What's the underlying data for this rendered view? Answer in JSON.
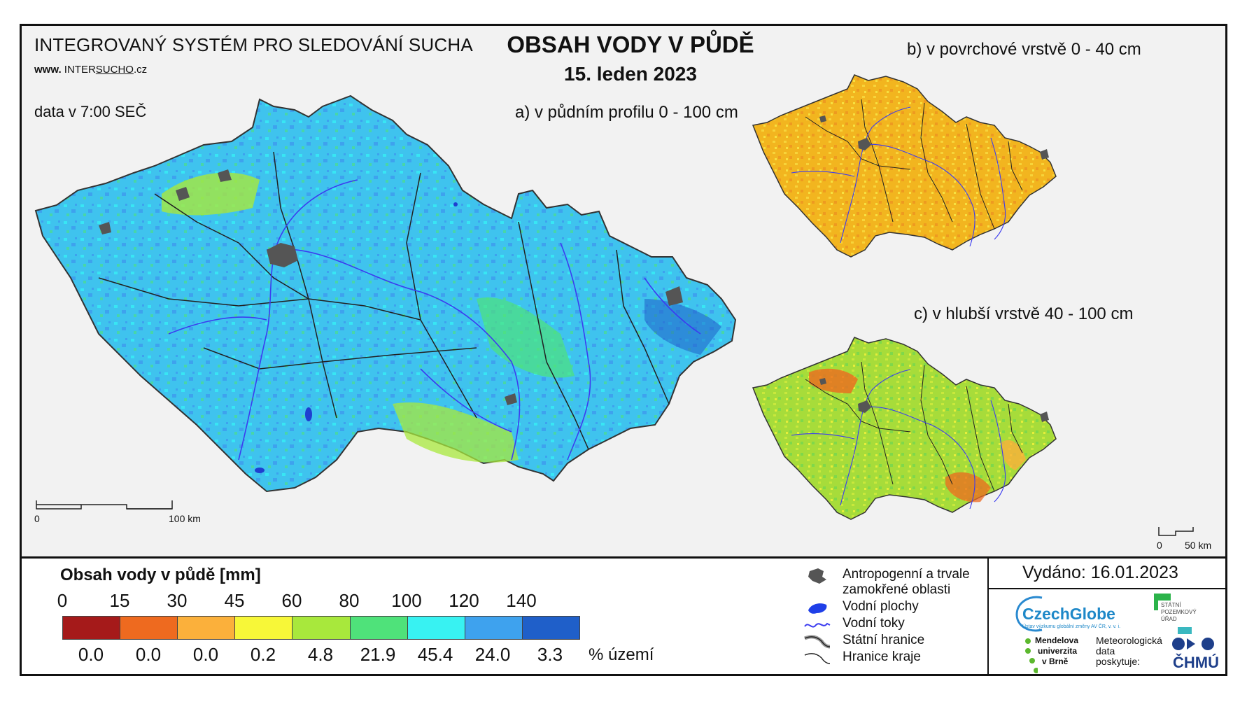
{
  "header": {
    "system_title": "INTEGROVANÝ SYSTÉM PRO SLEDOVÁNÍ SUCHA",
    "website_prefix": "www.",
    "website_main": "INTER",
    "website_highlight": "SUCHO",
    "website_suffix": ".cz",
    "data_time": "data v 7:00 SEČ",
    "main_title": "OBSAH VODY V PŮDĚ",
    "date": "15. leden 2023"
  },
  "maps": {
    "a": {
      "label": "a) v půdním profilu 0 - 100 cm",
      "scale_start": "0",
      "scale_end": "100 km"
    },
    "b": {
      "label": "b) v povrchové vrstvě 0 - 40 cm"
    },
    "c": {
      "label": "c) v hlubší vrstvě 40 - 100 cm",
      "scale_start": "0",
      "scale_end": "50 km"
    }
  },
  "legend": {
    "title": "Obsah vody v půdě  [mm]",
    "ticks": [
      "0",
      "15",
      "30",
      "45",
      "60",
      "80",
      "100",
      "120",
      "140"
    ],
    "classes": [
      {
        "color": "#a51a1a",
        "percent": "0.0"
      },
      {
        "color": "#ee6a1f",
        "percent": "0.0"
      },
      {
        "color": "#fbb03b",
        "percent": "0.0"
      },
      {
        "color": "#f7f738",
        "percent": "0.2"
      },
      {
        "color": "#a8e83c",
        "percent": "4.8"
      },
      {
        "color": "#4fe27a",
        "percent": "21.9"
      },
      {
        "color": "#38f2f2",
        "percent": "45.4"
      },
      {
        "color": "#3ea2ee",
        "percent": "24.0"
      },
      {
        "color": "#1f5fc9",
        "percent": "3.3"
      }
    ],
    "percent_unit": "% území"
  },
  "symbols": [
    {
      "icon": "urban-area-icon",
      "label_line1": "Antropogenní a trvale",
      "label_line2": "zamokřené oblasti"
    },
    {
      "icon": "water-body-icon",
      "label_line1": "Vodní plochy"
    },
    {
      "icon": "river-icon",
      "label_line1": "Vodní toky"
    },
    {
      "icon": "state-border-icon",
      "label_line1": "Státní hranice"
    },
    {
      "icon": "region-border-icon",
      "label_line1": "Hranice kraje"
    }
  ],
  "footer": {
    "issued": "Vydáno: 16.01.2023",
    "czechglobe": "CzechGlobe",
    "czechglobe_sub": "Ústav výzkumu globální změny AV ČR, v. v. i.",
    "spu_line1": "STÁTNÍ",
    "spu_line2": "POZEMKOVÝ",
    "spu_line3": "ÚŘAD",
    "mendel_line1": "Mendelova",
    "mendel_line2": "univerzita",
    "mendel_line3": "v Brně",
    "met_line1": "Meteorologická",
    "met_line2": "data",
    "met_line3": "poskytuje:",
    "chmu": "ČHMÚ"
  },
  "colors": {
    "map_a_base": "#3fc3ee",
    "map_b_base": "#f2b51f",
    "map_c_base": "#a7dc3a",
    "river": "#3c3cf0",
    "border": "#222222",
    "urban": "#555555"
  }
}
